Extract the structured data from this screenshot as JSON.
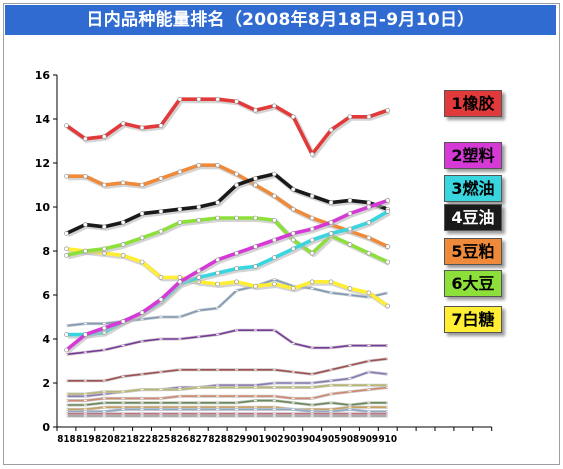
{
  "title": "日内品种能量排名（2008年8月18日-9月10日）",
  "colors": {
    "header_bg": "#2f6bd0",
    "plot_bg": "#ffffff",
    "axis": "#000000"
  },
  "chart_data": {
    "type": "line",
    "title": "日内品种能量排名（2008年8月18日-9月10日）",
    "xlabel": "",
    "ylabel": "",
    "ylim": [
      0,
      16
    ],
    "yticks": [
      0,
      2,
      4,
      6,
      8,
      10,
      12,
      14,
      16
    ],
    "grid": false,
    "legend_position": "right",
    "x_extra_ticks": 5,
    "categories": [
      "818",
      "819",
      "820",
      "821",
      "822",
      "825",
      "826",
      "827",
      "828",
      "829",
      "901",
      "902",
      "903",
      "904",
      "905",
      "908",
      "909",
      "910"
    ],
    "series": [
      {
        "name": "1橡胶",
        "color": "#e23a3a",
        "values": [
          13.7,
          13.1,
          13.2,
          13.8,
          13.6,
          13.7,
          14.9,
          14.9,
          14.9,
          14.8,
          14.4,
          14.6,
          14.1,
          12.4,
          13.5,
          14.1,
          14.1,
          14.4
        ]
      },
      {
        "name": "2塑料",
        "color": "#d63ad6",
        "values": [
          3.5,
          4.2,
          4.5,
          4.8,
          5.2,
          5.8,
          6.6,
          7.1,
          7.6,
          7.9,
          8.2,
          8.5,
          8.8,
          9.0,
          9.3,
          9.7,
          10.0,
          10.3
        ]
      },
      {
        "name": "3燃油",
        "color": "#3ad6e0",
        "values": [
          4.2,
          4.2,
          4.3,
          4.8,
          5.2,
          5.7,
          6.5,
          6.8,
          7.0,
          7.2,
          7.3,
          7.7,
          8.1,
          8.5,
          8.8,
          9.0,
          9.3,
          9.8
        ]
      },
      {
        "name": "4豆油",
        "color": "#1a1a1a",
        "values": [
          8.8,
          9.2,
          9.1,
          9.3,
          9.7,
          9.8,
          9.9,
          10.0,
          10.2,
          11.0,
          11.3,
          11.5,
          10.8,
          10.5,
          10.2,
          10.3,
          10.2,
          9.9
        ]
      },
      {
        "name": "5豆粕",
        "color": "#ee8a3a",
        "values": [
          11.4,
          11.4,
          11.0,
          11.1,
          11.0,
          11.3,
          11.6,
          11.9,
          11.9,
          11.5,
          11.0,
          10.5,
          9.9,
          9.5,
          9.2,
          8.9,
          8.6,
          8.2
        ]
      },
      {
        "name": "6大豆",
        "color": "#8de03a",
        "values": [
          7.8,
          8.0,
          8.1,
          8.3,
          8.6,
          8.9,
          9.3,
          9.4,
          9.5,
          9.5,
          9.5,
          9.4,
          8.5,
          7.9,
          8.7,
          8.3,
          7.9,
          7.5
        ]
      },
      {
        "name": "7白糖",
        "color": "#ffee33",
        "values": [
          8.1,
          8.0,
          7.9,
          7.8,
          7.5,
          6.8,
          6.8,
          6.6,
          6.5,
          6.6,
          6.4,
          6.5,
          6.3,
          6.6,
          6.6,
          6.3,
          6.1,
          5.5
        ]
      }
    ],
    "other_series_unlabeled": [
      {
        "color": "#7f9bb8",
        "values": [
          4.6,
          4.7,
          4.7,
          4.8,
          4.9,
          5.0,
          5.0,
          5.3,
          5.4,
          6.2,
          6.4,
          6.7,
          6.4,
          6.3,
          6.1,
          6.0,
          5.9,
          6.1
        ]
      },
      {
        "color": "#7a3a9a",
        "values": [
          3.3,
          3.4,
          3.5,
          3.7,
          3.9,
          4.0,
          4.0,
          4.1,
          4.2,
          4.4,
          4.4,
          4.4,
          3.8,
          3.6,
          3.6,
          3.7,
          3.7,
          3.7
        ]
      },
      {
        "color": "#a05050",
        "values": [
          2.1,
          2.1,
          2.1,
          2.3,
          2.4,
          2.5,
          2.6,
          2.6,
          2.6,
          2.6,
          2.6,
          2.6,
          2.5,
          2.4,
          2.6,
          2.8,
          3.0,
          3.1
        ]
      },
      {
        "color": "#8a7ab8",
        "values": [
          1.4,
          1.4,
          1.5,
          1.6,
          1.7,
          1.7,
          1.8,
          1.8,
          1.9,
          1.9,
          1.9,
          2.0,
          2.0,
          2.0,
          2.1,
          2.2,
          2.5,
          2.4
        ]
      },
      {
        "color": "#b8b870",
        "values": [
          1.5,
          1.5,
          1.6,
          1.6,
          1.7,
          1.7,
          1.7,
          1.8,
          1.8,
          1.8,
          1.8,
          1.8,
          1.8,
          1.8,
          1.9,
          1.9,
          1.9,
          1.9
        ]
      },
      {
        "color": "#d08a70",
        "values": [
          1.2,
          1.2,
          1.3,
          1.3,
          1.3,
          1.3,
          1.4,
          1.4,
          1.4,
          1.4,
          1.4,
          1.4,
          1.3,
          1.3,
          1.5,
          1.6,
          1.7,
          1.8
        ]
      },
      {
        "color": "#6a8a5a",
        "values": [
          1.0,
          1.0,
          1.1,
          1.1,
          1.1,
          1.1,
          1.1,
          1.1,
          1.1,
          1.1,
          1.2,
          1.2,
          1.1,
          1.0,
          1.1,
          1.0,
          1.1,
          1.1
        ]
      },
      {
        "color": "#c8a060",
        "values": [
          0.8,
          0.8,
          0.9,
          0.9,
          0.9,
          0.9,
          0.9,
          0.9,
          0.9,
          0.9,
          0.9,
          0.9,
          0.8,
          0.8,
          0.8,
          0.9,
          0.9,
          0.9
        ]
      },
      {
        "color": "#90a8c8",
        "values": [
          0.7,
          0.7,
          0.7,
          0.8,
          0.8,
          0.8,
          0.8,
          0.8,
          0.8,
          0.8,
          0.8,
          0.8,
          0.8,
          0.7,
          0.7,
          0.8,
          0.7,
          0.7
        ]
      },
      {
        "color": "#c07080",
        "values": [
          0.6,
          0.6,
          0.6,
          0.6,
          0.6,
          0.6,
          0.6,
          0.6,
          0.6,
          0.6,
          0.6,
          0.6,
          0.6,
          0.6,
          0.6,
          0.6,
          0.6,
          0.6
        ]
      },
      {
        "color": "#a0a0a0",
        "values": [
          0.5,
          0.5,
          0.5,
          0.5,
          0.5,
          0.5,
          0.5,
          0.5,
          0.5,
          0.5,
          0.5,
          0.5,
          0.5,
          0.5,
          0.5,
          0.5,
          0.5,
          0.5
        ]
      }
    ]
  }
}
